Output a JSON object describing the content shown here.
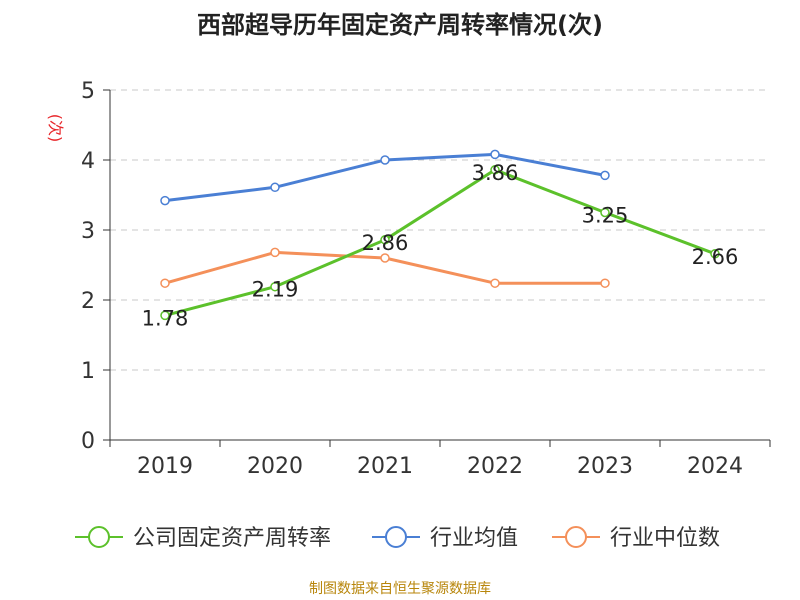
{
  "chart_data": {
    "type": "line",
    "title": "西部超导历年固定资产周转率情况(次)",
    "xlabel": "",
    "ylabel": "(次)",
    "categories": [
      "2019",
      "2020",
      "2021",
      "2022",
      "2023",
      "2024"
    ],
    "ylim": [
      0,
      5
    ],
    "yticks": [
      "0",
      "1",
      "2",
      "3",
      "4",
      "5"
    ],
    "grid": true,
    "legend_position": "bottom",
    "series": [
      {
        "name": "公司固定资产周转率",
        "color": "#5cc12b",
        "values": [
          1.78,
          2.19,
          2.86,
          3.86,
          3.25,
          2.66
        ],
        "labels": [
          "1.78",
          "2.19",
          "2.86",
          "3.86",
          "3.25",
          "2.66"
        ],
        "show_labels": true
      },
      {
        "name": "行业均值",
        "color": "#4a7fd4",
        "values": [
          3.42,
          3.61,
          4.0,
          4.08,
          3.78,
          null
        ],
        "show_labels": false
      },
      {
        "name": "行业中位数",
        "color": "#f4905a",
        "values": [
          2.24,
          2.68,
          2.6,
          2.24,
          2.24,
          null
        ],
        "show_labels": false
      }
    ],
    "source": "制图数据来自恒生聚源数据库"
  }
}
